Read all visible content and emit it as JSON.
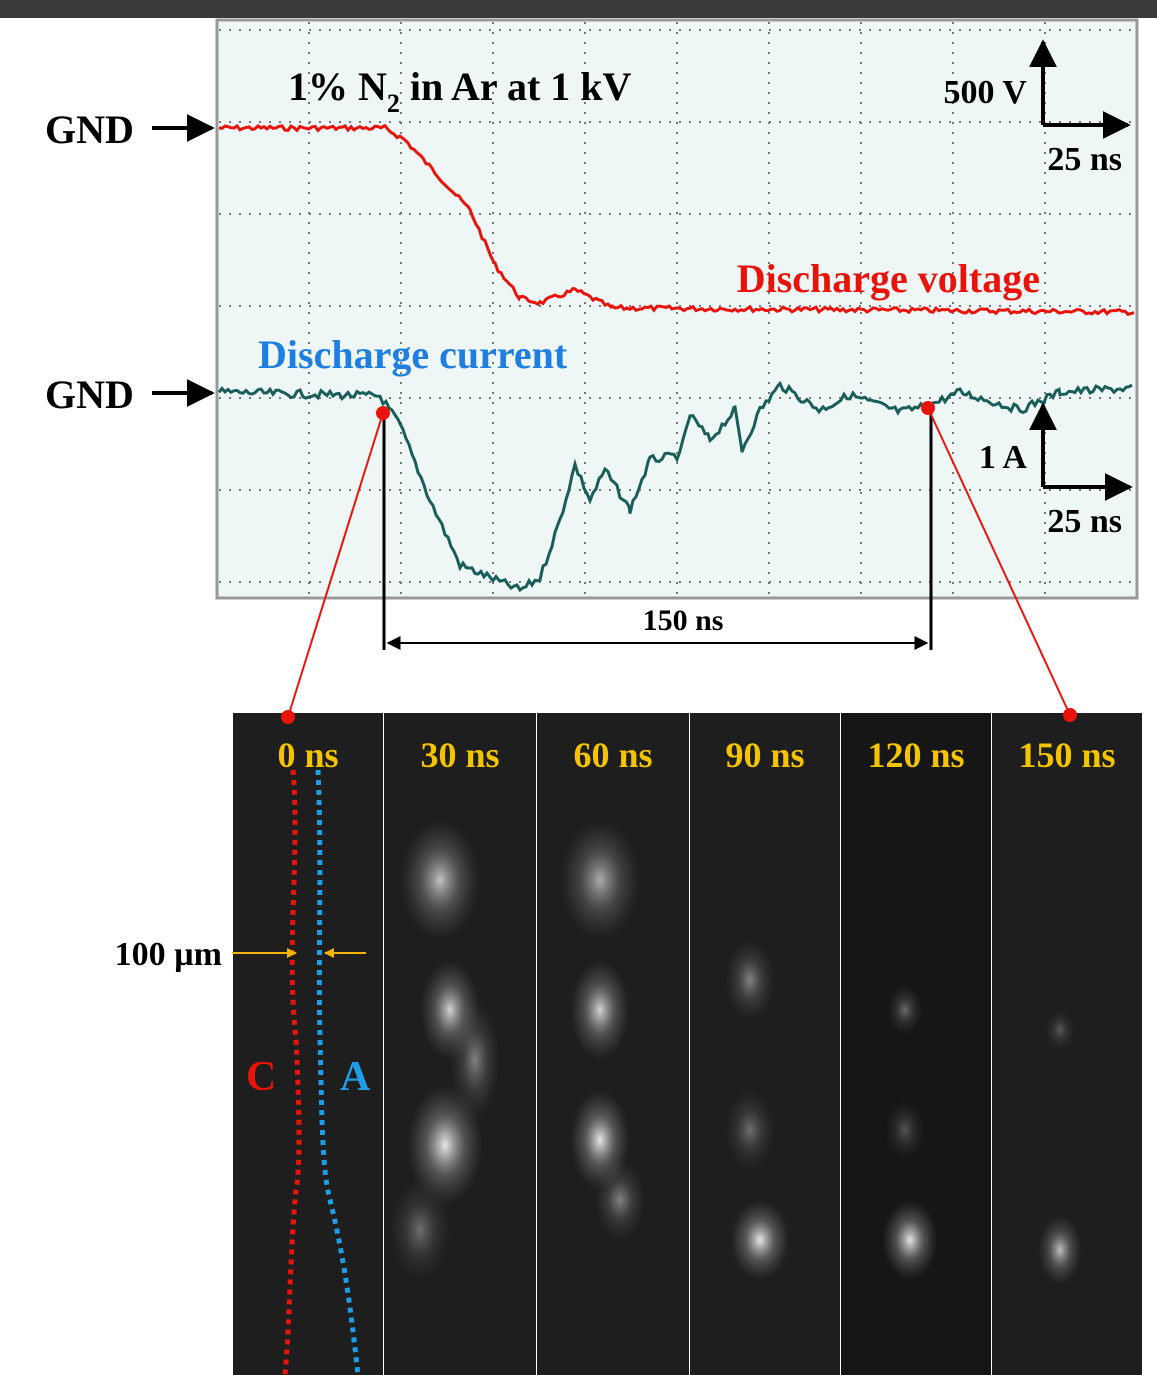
{
  "scope": {
    "title": {
      "pre": "1% N",
      "sub": "2",
      "post": " in Ar at 1 kV"
    },
    "gnd_labels": [
      "GND",
      "GND"
    ],
    "voltage_scale": {
      "amplitude": "500 V",
      "time": "25 ns"
    },
    "current_scale": {
      "amplitude": "1 A",
      "time": "25 ns"
    },
    "traces": [
      "Discharge voltage",
      "Discharge current"
    ],
    "interval": "150 ns"
  },
  "frames": {
    "labels": [
      "0 ns",
      "30 ns",
      "60 ns",
      "90 ns",
      "120 ns",
      "150 ns"
    ],
    "scale": "100 µm",
    "cathode": "C",
    "anode": "A"
  }
}
